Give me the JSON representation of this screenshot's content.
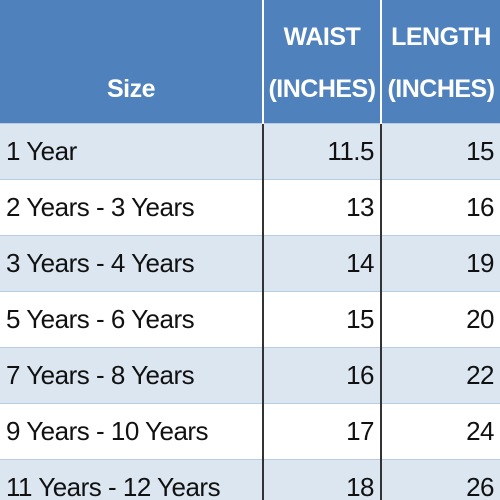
{
  "table": {
    "header": [
      [
        "Size"
      ],
      [
        "WAIST",
        "(INCHES)"
      ],
      [
        "LENGTH",
        "(INCHES)"
      ]
    ],
    "rows": [
      [
        "1 Year",
        11.5,
        15
      ],
      [
        "2 Years - 3 Years",
        13,
        16
      ],
      [
        "3 Years - 4 Years",
        14,
        19
      ],
      [
        "5 Years - 6 Years",
        15,
        20
      ],
      [
        "7 Years - 8 Years",
        16,
        22
      ],
      [
        "9 Years - 10 Years",
        17,
        24
      ],
      [
        "11 Years - 12 Years",
        18,
        26
      ]
    ]
  }
}
